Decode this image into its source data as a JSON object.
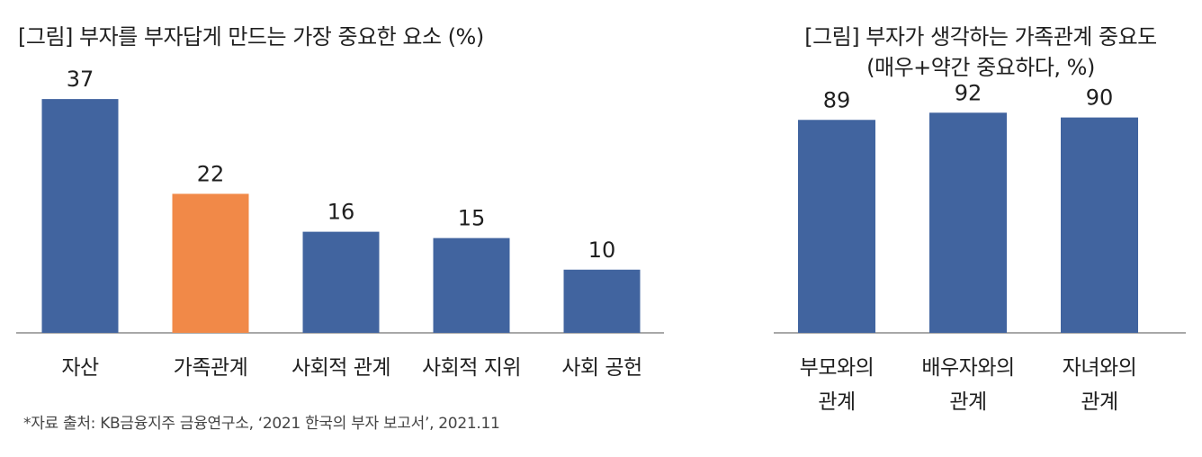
{
  "colors": {
    "bar": "#41649f",
    "highlight": "#f18948",
    "axis": "#8c8c8c",
    "text": "#1f1f1f"
  },
  "footnote": "*자료 출처: KB금융지주 금융연구소, ‘2021 한국의 부자 보고서’, 2021.11",
  "chart_data": [
    {
      "type": "bar",
      "title": "[그림] 부자를 부자답게 만드는 가장 중요한 요소 (%)",
      "categories": [
        "자산",
        "가족관계",
        "사회적 관계",
        "사회적 지위",
        "사회 공헌"
      ],
      "values": [
        37,
        22,
        16,
        15,
        10
      ],
      "highlight_index": 1,
      "xlabel": "",
      "ylabel": "",
      "ylim": [
        0,
        41
      ],
      "grid": false
    },
    {
      "type": "bar",
      "title": "[그림] 부자가 생각하는 가족관계 중요도\n(매우+약간 중요하다, %)",
      "categories": [
        "부모와의\n관계",
        "배우자와의\n관계",
        "자녀와의\n관계"
      ],
      "values": [
        89,
        92,
        90
      ],
      "xlabel": "",
      "ylabel": "",
      "ylim": [
        0,
        100
      ],
      "grid": false
    }
  ]
}
